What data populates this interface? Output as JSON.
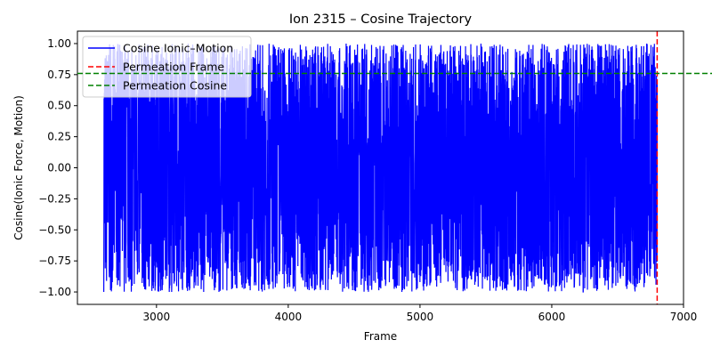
{
  "chart_data": {
    "type": "line",
    "title": "Ion 2315 – Cosine Trajectory",
    "xlabel": "Frame",
    "ylabel": "Cosine(Ionic Force, Motion)",
    "xlim": [
      2400,
      7000
    ],
    "ylim": [
      -1.1,
      1.1
    ],
    "x_ticks": [
      3000,
      4000,
      5000,
      6000,
      7000
    ],
    "x_tick_labels": [
      "3000",
      "4000",
      "5000",
      "6000",
      "7000"
    ],
    "y_ticks": [
      -1.0,
      -0.75,
      -0.5,
      -0.25,
      0.0,
      0.25,
      0.5,
      0.75,
      1.0
    ],
    "y_tick_labels": [
      "−1.00",
      "−0.75",
      "−0.50",
      "−0.25",
      "0.00",
      "0.25",
      "0.50",
      "0.75",
      "1.00"
    ],
    "grid": false,
    "legend_position": "top-left",
    "series": [
      {
        "name": "Cosine Ionic–Motion",
        "color": "#0000ff",
        "style": "solid",
        "x_range": [
          2600,
          6800
        ],
        "value_range": [
          -1.0,
          1.0
        ],
        "note_count": 4200
      }
    ],
    "reference_lines": [
      {
        "name": "Permeation Frame",
        "orientation": "vertical",
        "value": 6800,
        "color": "#ff0000",
        "style": "dashed"
      },
      {
        "name": "Permeation Cosine",
        "orientation": "horizontal",
        "value": 0.76,
        "color": "#008000",
        "style": "dashed"
      }
    ]
  }
}
